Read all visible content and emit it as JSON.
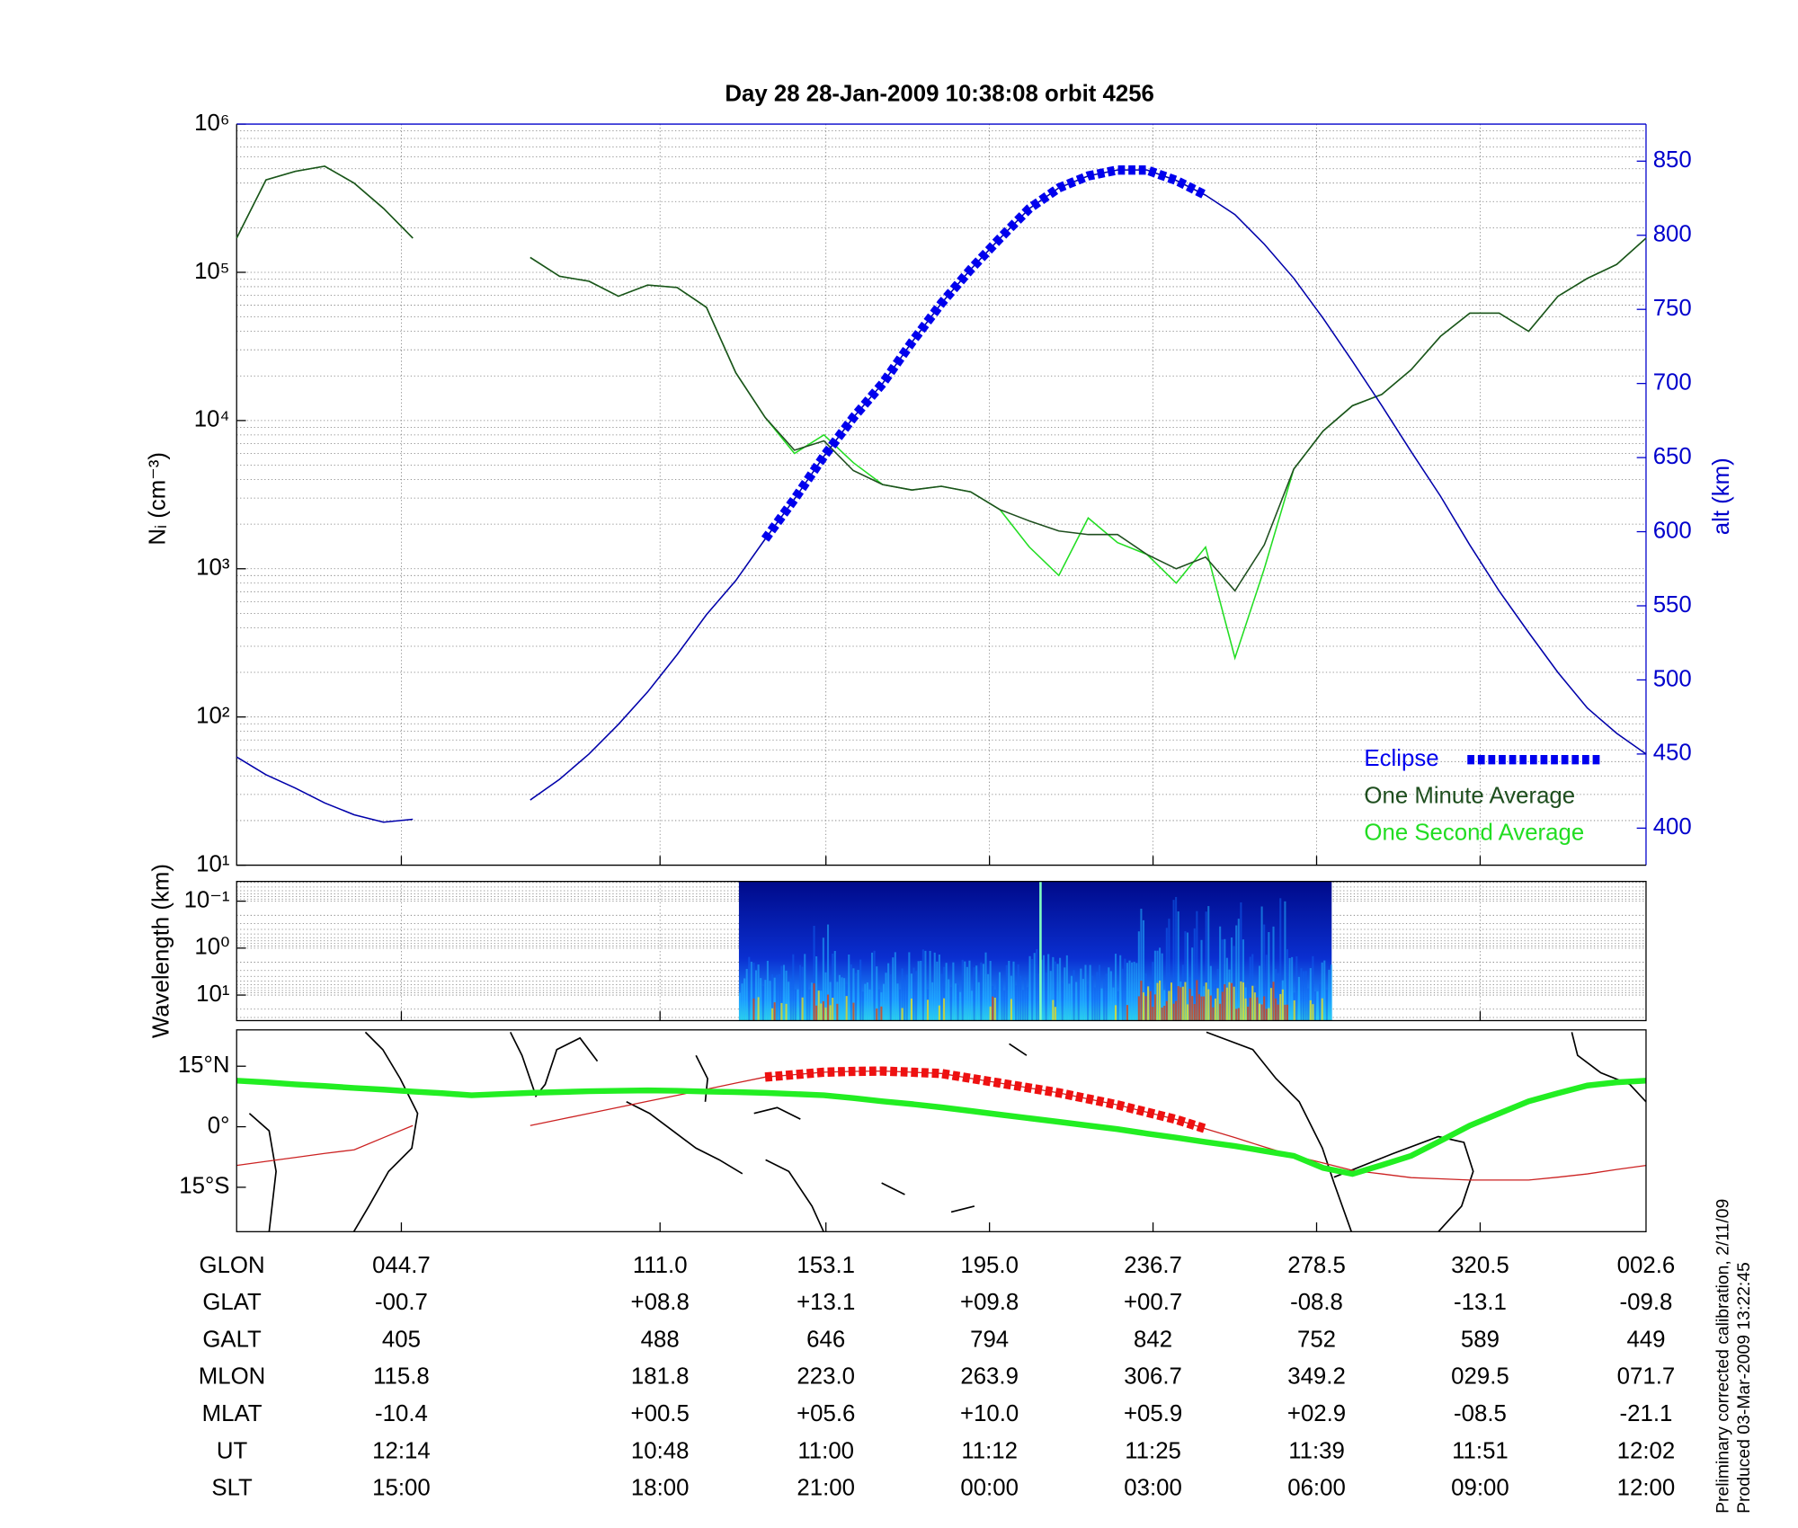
{
  "chart_data": [
    {
      "type": "line",
      "title": "Day 28  28-Jan-2009 10:38:08   orbit 4256",
      "ylabel": "Nᵢ (cm⁻³)",
      "y2label": "alt (km)",
      "log_y": true,
      "ylim": [
        10,
        1000000
      ],
      "yticks": [
        {
          "value": 10,
          "label": "10¹"
        },
        {
          "value": 100,
          "label": "10²"
        },
        {
          "value": 1000,
          "label": "10³"
        },
        {
          "value": 10000,
          "label": "10⁴"
        },
        {
          "value": 100000,
          "label": "10⁵"
        },
        {
          "value": 1000000,
          "label": "10⁶"
        }
      ],
      "y2lim": [
        375,
        875
      ],
      "y2ticks": [
        400,
        450,
        500,
        550,
        600,
        650,
        700,
        750,
        800,
        850
      ],
      "grid": true,
      "legend": "lower right",
      "series": [
        {
          "name": "One Second Average",
          "color": "#22dd22",
          "values": [
            170000,
            420000,
            480000,
            520000,
            400000,
            270000,
            170000,
            null,
            null,
            null,
            126000,
            94000,
            87000,
            69000,
            82000,
            79000,
            58000,
            21000,
            10500,
            6000,
            8000,
            5200,
            3700,
            3400,
            3600,
            3300,
            2500,
            1400,
            900,
            2200,
            1500,
            1250,
            800,
            1400,
            250,
            1000,
            4700,
            8500,
            12600,
            15000,
            22000,
            37000,
            53000,
            53000,
            40000,
            69000,
            91000,
            113000,
            170000
          ]
        },
        {
          "name": "One Minute Average",
          "color": "#1e4e1e",
          "values": [
            170000,
            420000,
            480000,
            520000,
            400000,
            270000,
            170000,
            null,
            null,
            null,
            126000,
            94000,
            87000,
            69000,
            82000,
            79000,
            58000,
            21000,
            10500,
            6300,
            7300,
            4600,
            3700,
            3400,
            3600,
            3300,
            2500,
            2100,
            1800,
            1700,
            1700,
            1250,
            1000,
            1200,
            710,
            1450,
            4700,
            8500,
            12600,
            15000,
            22000,
            37000,
            53000,
            53000,
            40000,
            69000,
            91000,
            113000,
            170000
          ]
        },
        {
          "color": "#0000aa",
          "axis": "y2",
          "values": [
            448,
            436,
            427,
            417,
            409,
            404,
            406,
            null,
            null,
            null,
            419,
            433,
            450,
            470,
            492,
            517,
            544,
            567,
            595,
            622,
            651,
            677,
            700,
            728,
            754,
            777,
            798,
            818,
            832,
            840,
            844,
            844,
            837,
            827,
            814,
            794,
            771,
            744,
            715,
            685,
            654,
            624,
            591,
            560,
            532,
            505,
            481,
            464,
            450
          ]
        },
        {
          "name": "Eclipse",
          "color": "#0000ee",
          "axis": "y2",
          "style": "thick-dashed",
          "values": [
            null,
            null,
            null,
            null,
            null,
            null,
            null,
            null,
            null,
            null,
            null,
            null,
            null,
            null,
            null,
            null,
            null,
            null,
            595,
            622,
            651,
            677,
            700,
            728,
            754,
            777,
            798,
            818,
            832,
            840,
            844,
            844,
            837,
            827,
            null,
            null,
            null,
            null,
            null,
            null,
            null,
            null,
            null,
            null,
            null,
            null,
            null,
            null,
            null
          ]
        }
      ]
    },
    {
      "type": "spectrogram",
      "ylabel": "Wavelength (km)",
      "log_y": true,
      "ylim": [
        35,
        0.038
      ],
      "yticks": [
        {
          "value": 0.1,
          "label": "10⁻¹"
        },
        {
          "value": 1,
          "label": "10⁰"
        },
        {
          "value": 10,
          "label": "10¹"
        }
      ],
      "grid": true
    },
    {
      "type": "map",
      "ylim": [
        -26,
        24
      ],
      "yticks": [
        {
          "value": 15,
          "label": "15°N"
        },
        {
          "value": 0,
          "label": "0°"
        },
        {
          "value": -15,
          "label": "15°S"
        }
      ],
      "series": [
        {
          "color": "#cc2222",
          "values": [
            -9.6,
            -8.6,
            -7.6,
            -6.6,
            -5.7,
            -2.7,
            0.3,
            null,
            null,
            null,
            0.3,
            1.8,
            3.3,
            4.8,
            6.3,
            7.8,
            9.3,
            10.8,
            12.3,
            12.9,
            13.5,
            13.7,
            13.8,
            13.5,
            13.2,
            12.0,
            10.8,
            9.6,
            8.4,
            6.9,
            5.4,
            3.6,
            1.8,
            -0.5,
            -2.7,
            -5.0,
            -7.2,
            -9.0,
            -10.8,
            -11.7,
            -12.6,
            -12.9,
            -13.2,
            -13.2,
            -13.2,
            -12.5,
            -11.7,
            -10.6,
            -9.6
          ]
        },
        {
          "color": "#ee1111",
          "style": "thick-dashed",
          "values": [
            null,
            null,
            null,
            null,
            null,
            null,
            null,
            null,
            null,
            null,
            null,
            null,
            null,
            null,
            null,
            null,
            null,
            null,
            12.3,
            12.9,
            13.5,
            13.7,
            13.8,
            13.5,
            13.2,
            12.0,
            10.8,
            9.6,
            8.4,
            6.9,
            5.4,
            3.6,
            1.8,
            -0.5,
            null,
            null,
            null,
            null,
            null,
            null,
            null,
            null,
            null,
            null,
            null,
            null,
            null,
            null,
            null
          ]
        },
        {
          "color": "#22ee22",
          "style": "thick",
          "values": [
            11.4,
            11.0,
            10.5,
            10.1,
            9.6,
            9.2,
            8.7,
            8.3,
            7.8,
            8.1,
            8.4,
            8.6,
            8.8,
            8.9,
            9.0,
            8.9,
            8.7,
            8.6,
            8.4,
            8.1,
            7.8,
            7.1,
            6.3,
            5.6,
            4.8,
            3.9,
            3.0,
            2.1,
            1.2,
            0.3,
            -0.6,
            -1.7,
            -2.7,
            -3.8,
            -4.8,
            -6.0,
            -7.2,
            -10.2,
            -11.7,
            -9.5,
            -7.2,
            -3.5,
            0.3,
            3.3,
            6.3,
            8.3,
            10.2,
            11.0,
            11.4
          ]
        }
      ]
    }
  ],
  "table": {
    "rows": [
      {
        "label": "GLON",
        "values": [
          "044.7",
          "111.0",
          "153.1",
          "195.0",
          "236.7",
          "278.5",
          "320.5",
          "002.6"
        ]
      },
      {
        "label": "GLAT",
        "values": [
          "-00.7",
          "+08.8",
          "+13.1",
          "+09.8",
          "+00.7",
          "-08.8",
          "-13.1",
          "-09.8"
        ]
      },
      {
        "label": "GALT",
        "values": [
          "405",
          "488",
          "646",
          "794",
          "842",
          "752",
          "589",
          "449"
        ]
      },
      {
        "label": "MLON",
        "values": [
          "115.8",
          "181.8",
          "223.0",
          "263.9",
          "306.7",
          "349.2",
          "029.5",
          "071.7"
        ]
      },
      {
        "label": "MLAT",
        "values": [
          "-10.4",
          "+00.5",
          "+05.6",
          "+10.0",
          "+05.9",
          "+02.9",
          "-08.5",
          "-21.1"
        ]
      },
      {
        "label": "UT",
        "values": [
          "12:14",
          "10:48",
          "11:00",
          "11:12",
          "11:25",
          "11:39",
          "11:51",
          "12:02"
        ]
      },
      {
        "label": "SLT",
        "values": [
          "15:00",
          "18:00",
          "21:00",
          "00:00",
          "03:00",
          "06:00",
          "09:00",
          "12:00"
        ]
      }
    ]
  },
  "footer": [
    "Preliminary corrected calibration, 2/11/09",
    "Produced 03-Mar-2009 13:22:45"
  ]
}
